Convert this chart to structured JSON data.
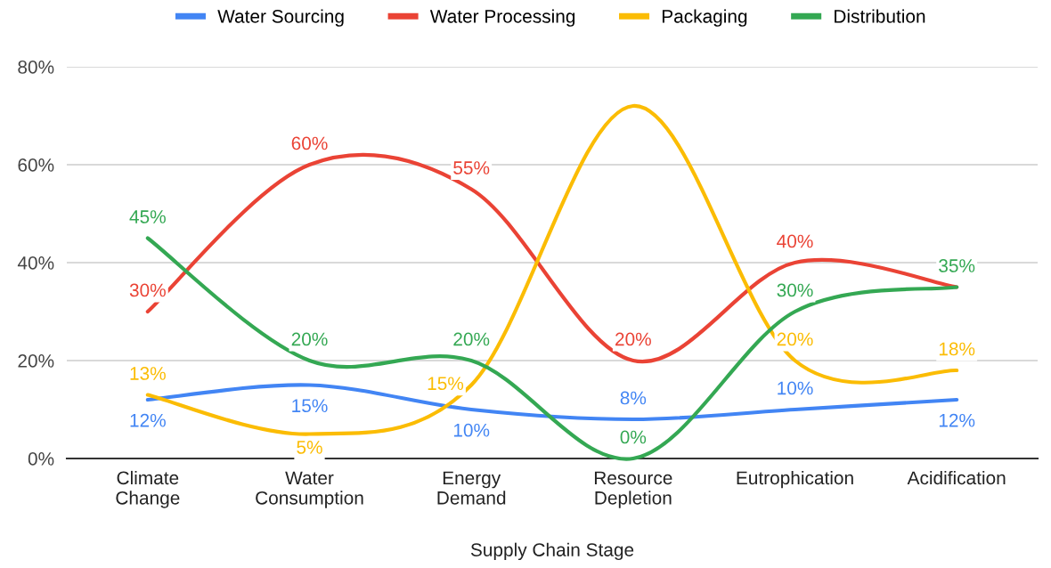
{
  "chart_data": {
    "type": "line",
    "xlabel": "Supply Chain Stage",
    "categories": [
      "Climate\nChange",
      "Water\nConsumption",
      "Energy\nDemand",
      "Resource\nDepletion",
      "Eutrophication",
      "Acidification"
    ],
    "series": [
      {
        "name": "Water Sourcing",
        "color": "#4285f4",
        "values": [
          12,
          15,
          10,
          8,
          10,
          12
        ],
        "value_labels": [
          "12%",
          "15%",
          "10%",
          "8%",
          "10%",
          "12%"
        ]
      },
      {
        "name": "Water Processing",
        "color": "#ea4335",
        "values": [
          30,
          60,
          55,
          20,
          40,
          35
        ],
        "value_labels": [
          "30%",
          "60%",
          "55%",
          "20%",
          "40%",
          null
        ]
      },
      {
        "name": "Packaging",
        "color": "#fbbc04",
        "values": [
          13,
          5,
          15,
          72,
          20,
          18
        ],
        "value_labels": [
          "13%",
          "5%",
          "15%",
          null,
          "20%",
          "18%"
        ]
      },
      {
        "name": "Distribution",
        "color": "#34a853",
        "values": [
          45,
          20,
          20,
          0,
          30,
          35
        ],
        "value_labels": [
          "45%",
          "20%",
          "20%",
          "0%",
          "30%",
          "35%"
        ]
      }
    ],
    "ylim": [
      0,
      80
    ],
    "yticks": [
      {
        "value": 0,
        "label": "0%"
      },
      {
        "value": 20,
        "label": "20%"
      },
      {
        "value": 40,
        "label": "40%"
      },
      {
        "value": 60,
        "label": "60%"
      },
      {
        "value": 80,
        "label": "80%"
      }
    ],
    "grid": "y",
    "legend": "top",
    "marker": "none",
    "line_style": "solid"
  }
}
